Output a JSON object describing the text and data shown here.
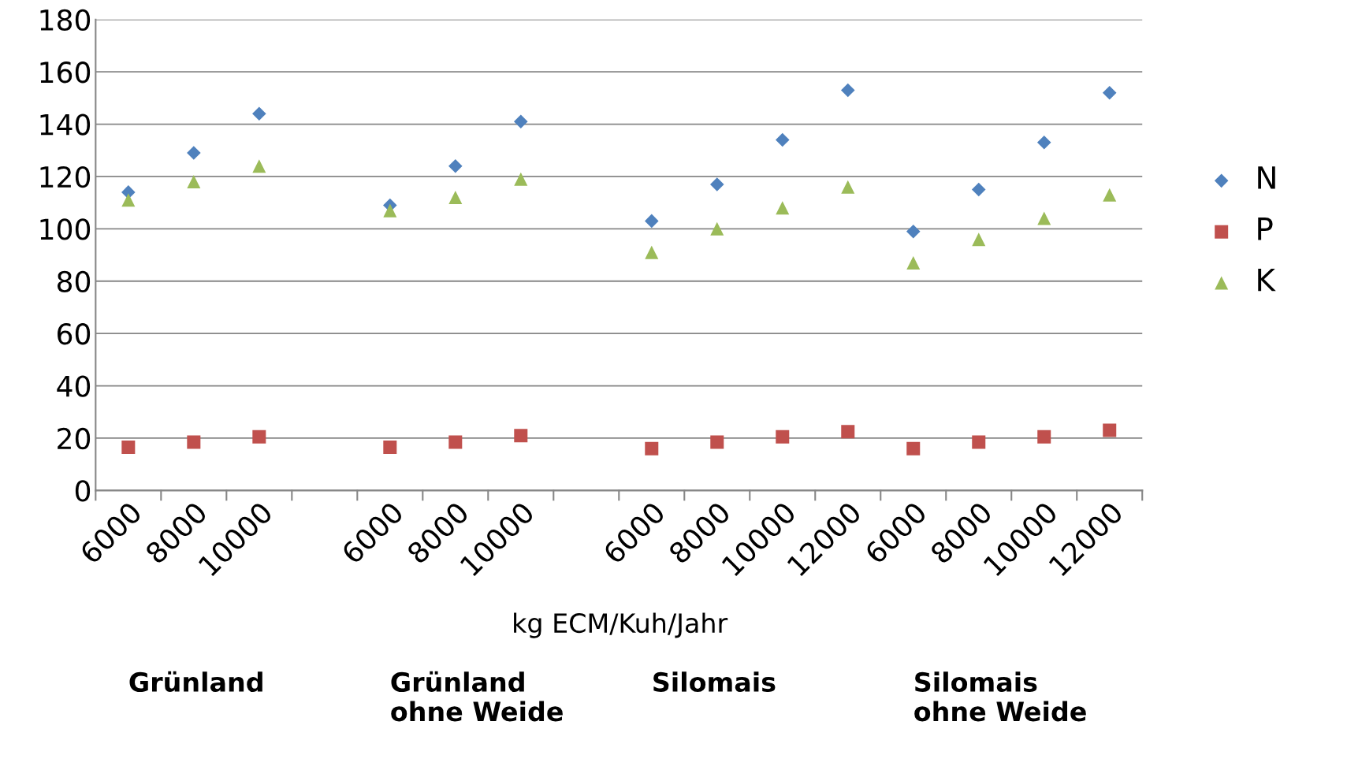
{
  "chart_data": {
    "type": "scatter",
    "xlabel": "kg ECM/Kuh/Jahr",
    "categories": [
      "6000",
      "8000",
      "10000",
      null,
      "6000",
      "8000",
      "10000",
      null,
      "6000",
      "8000",
      "10000",
      "12000",
      "6000",
      "8000",
      "10000",
      "12000"
    ],
    "series": [
      {
        "name": "N",
        "color": "#4f81bd",
        "marker": "diamond",
        "values": [
          114,
          129,
          144,
          null,
          109,
          124,
          141,
          null,
          103,
          117,
          134,
          153,
          99,
          115,
          133,
          152
        ]
      },
      {
        "name": "P",
        "color": "#c0504d",
        "marker": "square",
        "values": [
          16.5,
          18.5,
          20.5,
          null,
          16.5,
          18.5,
          21,
          null,
          16,
          18.5,
          20.5,
          22.5,
          16,
          18.5,
          20.5,
          23
        ]
      },
      {
        "name": "K",
        "color": "#9bbb59",
        "marker": "triangle",
        "values": [
          111,
          118,
          124,
          null,
          107,
          112,
          119,
          null,
          91,
          100,
          108,
          116,
          87,
          96,
          104,
          113
        ]
      }
    ],
    "ylim": [
      0,
      180
    ],
    "yticks": [
      0,
      20,
      40,
      60,
      80,
      100,
      120,
      140,
      160,
      180
    ],
    "grid": "y",
    "legend": "right",
    "annotations": [
      "Grünland",
      "Grünland\nohne Weide",
      "Silomais",
      "Silomais\nohne Weide"
    ]
  }
}
